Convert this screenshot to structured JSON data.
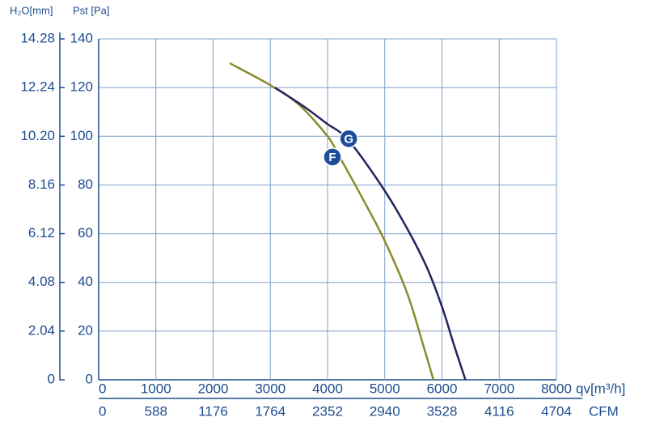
{
  "chart_data": {
    "type": "line",
    "y_label": "Pst [Pa]",
    "y2_label": "H₂O[mm]",
    "x_label": "qv[m³/h]",
    "x2_label": "CFM",
    "xlim": [
      0,
      8000
    ],
    "xticks": [
      0,
      1000,
      2000,
      3000,
      4000,
      5000,
      6000,
      7000,
      8000
    ],
    "x2lim": [
      0,
      4704
    ],
    "x2ticks": [
      0,
      588,
      1176,
      1764,
      2352,
      2940,
      3528,
      4116,
      4704
    ],
    "ylim": [
      0,
      140
    ],
    "yticks": [
      0,
      20,
      40,
      60,
      80,
      100,
      120,
      140
    ],
    "y2lim": [
      0,
      14.28
    ],
    "y2ticks": [
      0,
      2.04,
      4.08,
      6.12,
      8.16,
      {
        "value": 10.2,
        "label": "10.20"
      },
      12.24,
      14.28
    ],
    "grid": true,
    "series": [
      {
        "name": "F",
        "color": "#8c8a2e",
        "x": [
          2290,
          3000,
          3500,
          4000,
          4200,
          4600,
          5000,
          5400,
          5700,
          5850
        ],
        "values": [
          130,
          121,
          113,
          100,
          92,
          75,
          57,
          35,
          12,
          0
        ],
        "marker_x": 4085,
        "marker_y": 91.5
      },
      {
        "name": "G",
        "color": "#25235e",
        "x": [
          3080,
          3600,
          4000,
          4300,
          4700,
          5200,
          5700,
          6000,
          6200,
          6410
        ],
        "values": [
          120,
          112,
          105,
          100,
          88,
          70,
          48,
          30,
          15,
          0
        ],
        "marker_x": 4370,
        "marker_y": 99
      }
    ]
  }
}
